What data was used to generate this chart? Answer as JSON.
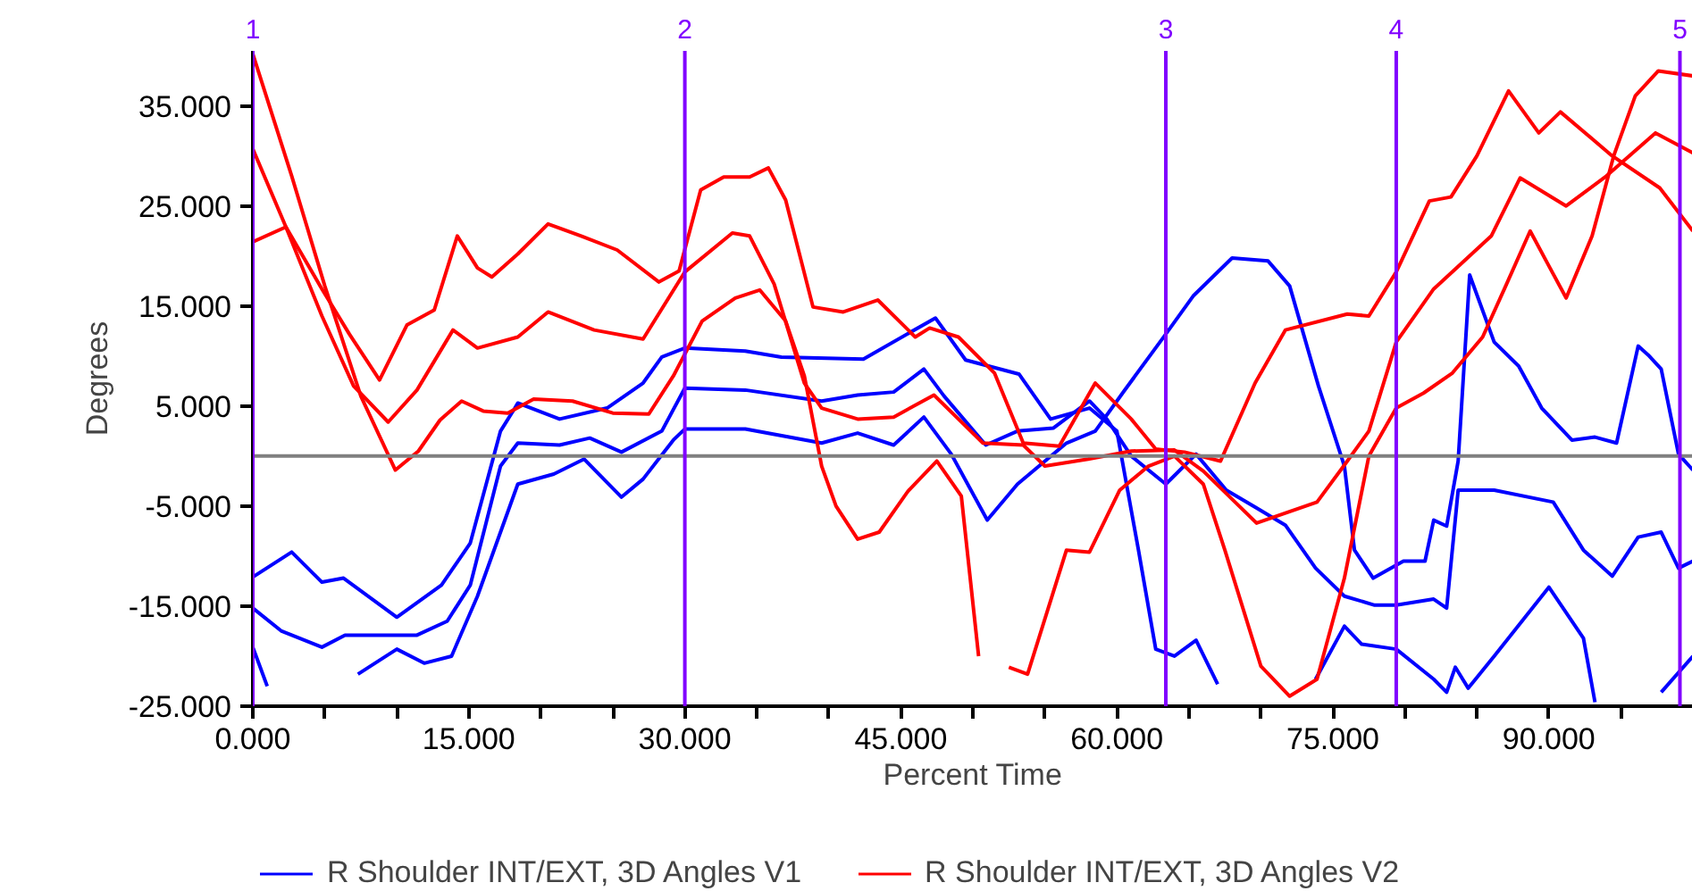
{
  "chart_data": {
    "type": "line",
    "xlabel": "Percent Time",
    "ylabel": "Degrees",
    "xlim": [
      0,
      100
    ],
    "ylim": [
      -25,
      40.5
    ],
    "xticks": [
      {
        "value": 0,
        "label": "0.000"
      },
      {
        "value": 5,
        "label": null
      },
      {
        "value": 10,
        "label": null
      },
      {
        "value": 15,
        "label": "15.000"
      },
      {
        "value": 20,
        "label": null
      },
      {
        "value": 25,
        "label": null
      },
      {
        "value": 30,
        "label": "30.000"
      },
      {
        "value": 35,
        "label": null
      },
      {
        "value": 40,
        "label": null
      },
      {
        "value": 45,
        "label": "45.000"
      },
      {
        "value": 50,
        "label": null
      },
      {
        "value": 55,
        "label": null
      },
      {
        "value": 60,
        "label": "60.000"
      },
      {
        "value": 65,
        "label": null
      },
      {
        "value": 70,
        "label": null
      },
      {
        "value": 75,
        "label": "75.000"
      },
      {
        "value": 80,
        "label": null
      },
      {
        "value": 85,
        "label": null
      },
      {
        "value": 90,
        "label": "90.000"
      },
      {
        "value": 95,
        "label": null
      }
    ],
    "yticks": [
      {
        "value": -25,
        "label": "-25.000"
      },
      {
        "value": -15,
        "label": "-15.000"
      },
      {
        "value": -5,
        "label": "-5.000"
      },
      {
        "value": 5,
        "label": "5.000"
      },
      {
        "value": 15,
        "label": "15.000"
      },
      {
        "value": 25,
        "label": "25.000"
      },
      {
        "value": 35,
        "label": "35.000"
      }
    ],
    "grid": false,
    "legend": "bottom",
    "marker": "none",
    "line_style": "solid",
    "ref_lines": [
      {
        "axis": "y",
        "value": 0,
        "label": null,
        "color": "#808080"
      },
      {
        "axis": "x",
        "value": 0,
        "label": null,
        "color": "#8000ff"
      },
      {
        "axis": "x",
        "value": 30,
        "label": null,
        "color": "#8000ff"
      },
      {
        "axis": "x",
        "value": 63.4,
        "label": null,
        "color": "#8000ff"
      },
      {
        "axis": "x",
        "value": 79.4,
        "label": null,
        "color": "#8000ff"
      },
      {
        "axis": "x",
        "value": 99.1,
        "label": null,
        "color": "#8000ff"
      }
    ],
    "annotations": [
      {
        "text": "1",
        "x": 0,
        "y": 40.5
      },
      {
        "text": "2",
        "x": 30,
        "y": 40.5
      },
      {
        "text": "3",
        "x": 63.4,
        "y": 40.5
      },
      {
        "text": "4",
        "x": 79.4,
        "y": 40.5
      },
      {
        "text": "5",
        "x": 99.1,
        "y": 40.5
      }
    ],
    "series": [
      {
        "name": "R Shoulder INT/EXT, 3D Angles V1",
        "color": "#0000ff",
        "x": [
          0,
          2.7,
          4.8,
          6.3,
          10,
          13.1,
          15.1,
          17.2,
          18.2,
          18.4,
          21.3,
          24.6,
          27.1,
          28.4,
          30,
          34.2,
          36.7,
          42.4,
          47.4,
          49.5,
          53.2,
          55.4,
          58.1,
          60,
          61.5,
          62.7,
          64,
          65.5,
          67,
          69.6,
          71.7,
          73.8,
          75.8,
          77,
          79.4,
          82,
          82.9,
          83.5,
          84.4,
          86.2,
          90,
          92.4,
          93.2,
          95.9,
          97.8,
          100
        ],
        "values": [
          -12.1,
          -9.6,
          -12.6,
          -12.2,
          -16.1,
          -12.9,
          -8.7,
          2.5,
          4.8,
          5.3,
          3.7,
          4.8,
          7.3,
          9.9,
          10.8,
          10.5,
          9.9,
          9.7,
          13.8,
          9.6,
          8.2,
          3.7,
          4.8,
          2.5,
          -9.4,
          -19.3,
          -20,
          -18.4,
          -22.8,
          null,
          null,
          -22.3,
          -17,
          -18.8,
          -19.3,
          -22.3,
          -23.6,
          -21.1,
          -23.2,
          -20,
          -13.1,
          -18.2,
          -24.6,
          null,
          -23.6,
          -20
        ]
      },
      {
        "color": "#0000ff",
        "x": [
          0,
          2,
          4.8,
          6.4,
          11.4,
          13.5,
          15.1,
          17.2,
          18.4,
          21.3,
          23.4,
          25.6,
          28.4,
          30,
          34.2,
          39.5,
          42,
          44.5,
          46.6,
          48,
          50.9,
          53.1,
          55.6,
          58.1,
          59.3,
          61,
          63.4,
          65.5,
          67.6,
          69.6,
          71.7,
          73.8,
          75.8,
          77.9,
          79.4,
          82,
          82.9,
          83.7,
          86.2,
          90.3,
          92.4,
          94.4,
          96.2,
          97.8,
          99,
          100
        ],
        "values": [
          -15.2,
          -17.5,
          -19.1,
          -17.9,
          -17.9,
          -16.5,
          -12.9,
          -1,
          1.3,
          1.1,
          1.8,
          0.4,
          2.5,
          6.8,
          6.6,
          5.5,
          6.1,
          6.4,
          8.7,
          6,
          1.1,
          2.5,
          2.8,
          5.5,
          3.7,
          0,
          -2.8,
          0.2,
          -3.4,
          -5.1,
          -6.9,
          -11.2,
          -14,
          -14.9,
          -14.9,
          -14.3,
          -15.2,
          -3.4,
          -3.4,
          -4.6,
          -9.4,
          -12,
          -8.1,
          -7.6,
          -11.2,
          -10.5
        ]
      },
      {
        "color": "#0000ff",
        "x": [
          0,
          1,
          3.8,
          4.8,
          7.3,
          10,
          11.9,
          13.8,
          15.6,
          18.4,
          20.9,
          23,
          25.6,
          27.1,
          29.2,
          30,
          34.2,
          39.5,
          42,
          44.5,
          46.6,
          48.5,
          51,
          53.1,
          56.5,
          58.5,
          60.5,
          63.3,
          65.3,
          68,
          70.5,
          72,
          74,
          75.8,
          76.5,
          77.8,
          79.9,
          81.4,
          82,
          82.9,
          83.7,
          84.5,
          86.2,
          87.9,
          89.5,
          91.6,
          93.2,
          94.7,
          96.2,
          96.9,
          97.8,
          99,
          100
        ],
        "values": [
          -19.1,
          -23,
          null,
          null,
          -21.8,
          -19.3,
          -20.7,
          -20,
          -14,
          -2.8,
          -1.8,
          -0.3,
          -4.1,
          -2.3,
          1.6,
          2.7,
          2.7,
          1.3,
          2.3,
          1.1,
          3.9,
          0.2,
          -6.4,
          -2.8,
          1.3,
          2.5,
          6.5,
          12,
          16,
          19.8,
          19.5,
          17,
          7,
          -1,
          -9.4,
          -12.2,
          -10.5,
          -10.5,
          -6.4,
          -7,
          -0.5,
          18.1,
          11.4,
          9,
          4.8,
          1.6,
          1.9,
          1.3,
          11,
          10.1,
          8.7,
          0.2,
          -1.4
        ]
      },
      {
        "name": "R Shoulder INT/EXT, 3D Angles V2",
        "color": "#ff0000",
        "x": [
          0,
          2.3,
          4.8,
          6.7,
          8.8,
          10.7,
          12.6,
          14.2,
          15.6,
          16.6,
          18.4,
          20.5,
          22.8,
          25.3,
          28.2,
          29.6,
          31.1,
          32.7,
          34.5,
          35.8,
          37,
          38.9,
          41,
          43.4,
          46,
          47,
          49,
          51.5,
          53.5,
          56,
          58.5,
          61,
          62.7,
          64.7,
          67.2,
          69.6,
          71.7,
          76,
          77.5,
          79.4,
          81.7,
          83.2,
          85,
          87.2,
          89.3,
          90.8,
          94.4,
          97.7,
          100
        ],
        "values": [
          21.4,
          22.9,
          16.7,
          12.2,
          7.6,
          13.1,
          14.6,
          22,
          18.8,
          17.9,
          20.2,
          23.2,
          22,
          20.6,
          17.4,
          18.5,
          26.6,
          27.9,
          27.9,
          28.8,
          25.6,
          14.9,
          14.4,
          15.6,
          11.9,
          12.8,
          11.9,
          8.3,
          1.3,
          1,
          7.3,
          3.7,
          0.7,
          0.4,
          -0.5,
          7.3,
          12.6,
          14.2,
          14,
          18.4,
          25.5,
          25.9,
          30,
          36.5,
          32.3,
          34.4,
          30,
          26.8,
          22.5
        ]
      },
      {
        "color": "#ff0000",
        "x": [
          0,
          2.3,
          4.8,
          7,
          9.4,
          11.4,
          13.9,
          15.6,
          18.4,
          20.5,
          23.7,
          27.1,
          30,
          33.3,
          34.5,
          36.2,
          38.3,
          39.5,
          42,
          44.5,
          47.3,
          49,
          50.7,
          53.5,
          55,
          58,
          61,
          64,
          66,
          69.7,
          73.9,
          76,
          77.5,
          79.4,
          82,
          86,
          88,
          91.2,
          94,
          97.4,
          100
        ],
        "values": [
          30.7,
          22.9,
          14,
          7,
          3.4,
          6.6,
          12.6,
          10.8,
          11.9,
          14.4,
          12.6,
          11.7,
          18.4,
          22.3,
          22,
          17.2,
          7.3,
          4.8,
          3.7,
          3.9,
          6.1,
          3.7,
          1.3,
          1.1,
          -1,
          -0.3,
          0.5,
          0.6,
          -1.5,
          -6.7,
          -4.6,
          -0.5,
          2.5,
          11.4,
          16.7,
          22,
          27.8,
          25,
          28,
          32.3,
          30.3
        ]
      },
      {
        "color": "#ff0000",
        "x": [
          0,
          2.7,
          5,
          7.5,
          9.9,
          11.5,
          13,
          14.5,
          16,
          17.7,
          19.5,
          22.2,
          25,
          27.5,
          29.2,
          31.2,
          33.5,
          35.2,
          37,
          38.3,
          39.5,
          40.5,
          42,
          43.5,
          45.5,
          47.5,
          49.2,
          50.4,
          51.3,
          52.5,
          53.8,
          56.5,
          58.1,
          60.2,
          62.2,
          64,
          66,
          67.5,
          70,
          72,
          73.9,
          75.8,
          77.5,
          79.4,
          81.3,
          83.3,
          85.4,
          87,
          88.7,
          90,
          91.2,
          93,
          94.5,
          96,
          97.6,
          100
        ],
        "values": [
          40.2,
          28,
          17,
          6,
          -1.4,
          0.5,
          3.6,
          5.5,
          4.5,
          4.3,
          5.7,
          5.5,
          4.3,
          4.2,
          8,
          13.5,
          15.8,
          16.6,
          13.5,
          8,
          -1,
          -5,
          -8.3,
          -7.6,
          -3.5,
          -0.5,
          -4,
          -20,
          null,
          -21.1,
          -21.8,
          -9.4,
          -9.6,
          -3.4,
          -1,
          0,
          -2.8,
          -9.4,
          -21,
          -24,
          -22.3,
          -12.2,
          0,
          4.8,
          6.3,
          8.3,
          11.9,
          17,
          22.5,
          19,
          15.8,
          22,
          30,
          36,
          38.5,
          38
        ]
      }
    ]
  }
}
